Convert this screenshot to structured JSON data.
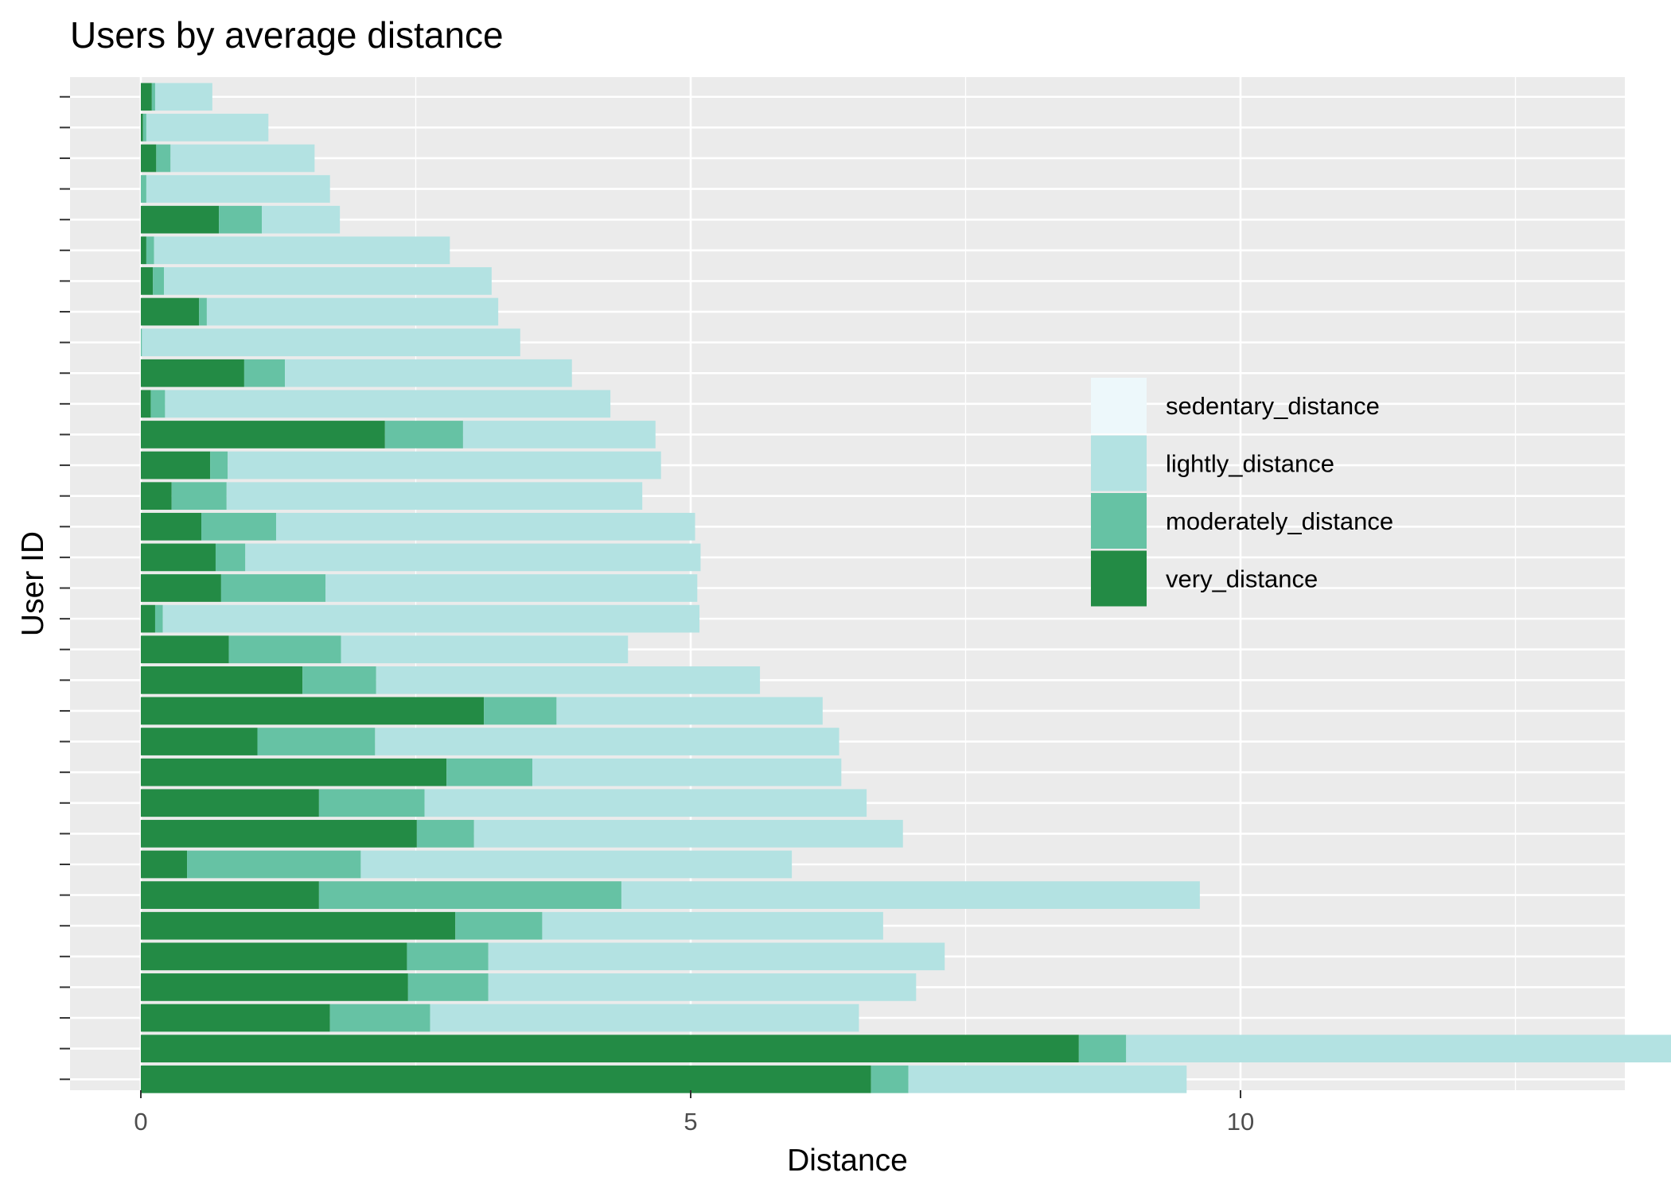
{
  "chart_data": {
    "type": "bar",
    "orientation": "horizontal",
    "stacked": true,
    "title": "Users by average distance",
    "xlabel": "Distance",
    "ylabel": "User ID",
    "xlim": [
      -0.33,
      13.8
    ],
    "x_ticks": [
      0,
      5,
      10
    ],
    "grid": true,
    "legend_position": "right",
    "series": [
      {
        "name": "sedentary_distance",
        "color": "#EDF8FB",
        "values": [
          0,
          0,
          0,
          0,
          0,
          0,
          0,
          0,
          0,
          0,
          0,
          0,
          0,
          0,
          0,
          0,
          0,
          0,
          0,
          0,
          0,
          0,
          0,
          0,
          0,
          0,
          0,
          0,
          0,
          0,
          0,
          0,
          0
        ]
      },
      {
        "name": "lightly_distance",
        "color": "#B3E2E2",
        "values": [
          0.52,
          1.11,
          1.31,
          1.67,
          0.71,
          2.69,
          2.98,
          2.65,
          3.44,
          2.61,
          4.05,
          1.75,
          3.94,
          3.78,
          3.81,
          4.14,
          3.38,
          4.88,
          2.61,
          3.49,
          2.42,
          4.22,
          2.81,
          4.02,
          3.9,
          3.92,
          5.26,
          3.1,
          4.15,
          3.89,
          3.9,
          5.4,
          2.53
        ],
        "_order": "top-to-bottom"
      },
      {
        "name": "moderately_distance",
        "color": "#66C2A4",
        "values": [
          0.03,
          0.03,
          0.13,
          0.05,
          0.39,
          0.07,
          0.1,
          0.07,
          0.01,
          0.37,
          0.13,
          0.71,
          0.16,
          0.5,
          0.68,
          0.27,
          0.95,
          0.07,
          1.02,
          0.67,
          0.66,
          1.07,
          0.78,
          0.96,
          0.52,
          1.58,
          2.75,
          0.79,
          0.74,
          0.73,
          0.91,
          0.43,
          0.34
        ],
        "_order": "top-to-bottom"
      },
      {
        "name": "very_distance",
        "color": "#238B45",
        "values": [
          0.1,
          0.02,
          0.14,
          0.0,
          0.71,
          0.05,
          0.11,
          0.53,
          0.0,
          0.94,
          0.09,
          2.22,
          0.63,
          0.28,
          0.55,
          0.68,
          0.73,
          0.13,
          0.8,
          1.47,
          3.12,
          1.06,
          2.78,
          1.62,
          2.51,
          0.42,
          1.62,
          2.86,
          2.42,
          2.43,
          1.72,
          8.53,
          6.64
        ],
        "_order": "top-to-bottom"
      }
    ]
  }
}
